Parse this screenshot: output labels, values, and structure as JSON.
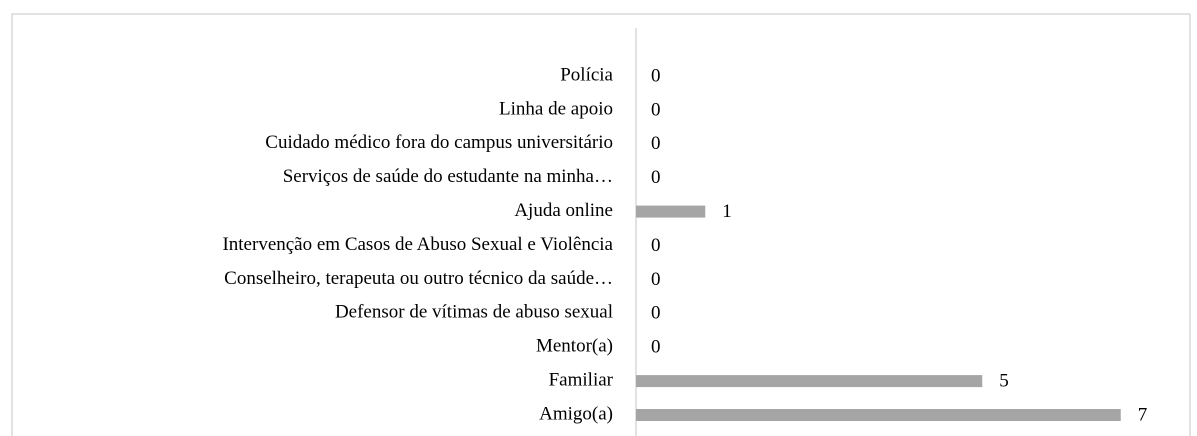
{
  "chart_data": {
    "type": "bar",
    "orientation": "horizontal",
    "categories": [
      "Polícia",
      "Linha de apoio",
      "Cuidado médico fora do campus universitário",
      "Serviços de saúde do estudante na minha…",
      "Ajuda online",
      "Intervenção em Casos de Abuso Sexual e Violência",
      "Conselheiro, terapeuta ou outro técnico da saúde…",
      "Defensor de vítimas de abuso sexual",
      "Mentor(a)",
      "Familiar",
      "Amigo(a)"
    ],
    "values": [
      0,
      0,
      0,
      0,
      1,
      0,
      0,
      0,
      0,
      5,
      7
    ],
    "color": "#a5a5a5",
    "xlim": [
      0,
      8
    ],
    "grid": false
  }
}
